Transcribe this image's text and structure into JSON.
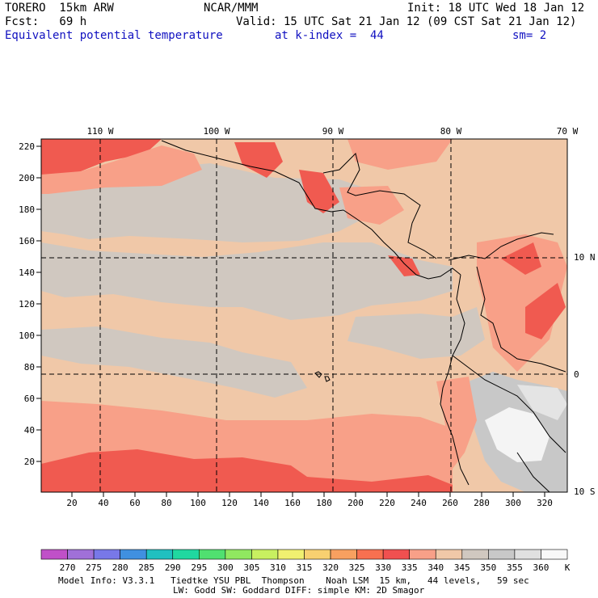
{
  "header": {
    "model": "TORERO  15km ARW",
    "org": "NCAR/MMM",
    "init": "Init: 18 UTC Wed 18 Jan 12",
    "fcst": "Fcst:   69 h",
    "valid": "Valid: 15 UTC Sat 21 Jan 12 (09 CST Sat 21 Jan 12)",
    "field": "Equivalent potential temperature",
    "level": "at k-index =  44",
    "smooth": "sm= 2"
  },
  "top_lon_labels": [
    "110 W",
    "100 W",
    "90 W",
    "80 W",
    "70 W"
  ],
  "right_lat_labels": [
    "10 N",
    "0",
    "10 S"
  ],
  "y_ticks": [
    "220",
    "200",
    "180",
    "160",
    "140",
    "120",
    "100",
    "80",
    "60",
    "40",
    "20"
  ],
  "x_ticks": [
    "20",
    "40",
    "60",
    "80",
    "100",
    "120",
    "140",
    "160",
    "180",
    "200",
    "220",
    "240",
    "260",
    "280",
    "300",
    "320"
  ],
  "colorbar": {
    "labels": [
      "270",
      "275",
      "280",
      "285",
      "290",
      "295",
      "300",
      "305",
      "310",
      "315",
      "320",
      "325",
      "330",
      "335",
      "340",
      "345",
      "350",
      "355",
      "360"
    ],
    "unit": "K",
    "colors": [
      "#c050c8",
      "#a070d8",
      "#7878e8",
      "#4090e0",
      "#20c0c0",
      "#20d8a0",
      "#50e070",
      "#90e860",
      "#c8f060",
      "#f0f070",
      "#f8d070",
      "#f8a060",
      "#f87050",
      "#f05050",
      "#f8a088",
      "#f0c8a8",
      "#d0c8c0",
      "#c8c8c8",
      "#e0e0e0",
      "#f8f8f8"
    ]
  },
  "footer": {
    "line1": "Model Info: V3.3.1   Tiedtke YSU PBL  Thompson    Noah LSM  15 km,   44 levels,   59 sec",
    "line2": "LW: Godd SW: Goddard DIFF: simple KM: 2D Smagor"
  }
}
